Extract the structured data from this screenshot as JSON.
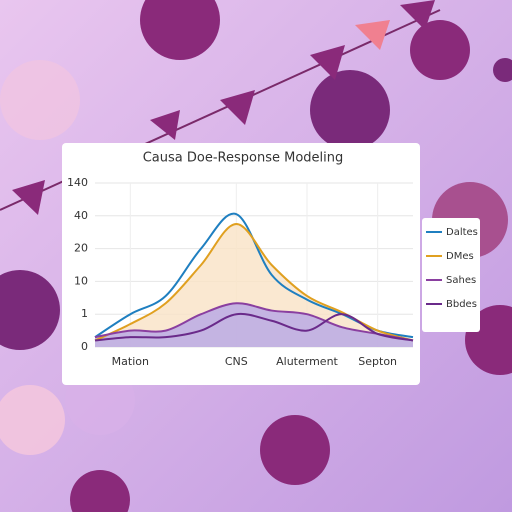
{
  "chart_data": {
    "type": "line",
    "title": "Causa Doe-Response Modeling",
    "categories": [
      null,
      "Mation",
      null,
      null,
      "CNS",
      null,
      "Aluterment",
      null,
      "Septon",
      null
    ],
    "series": [
      {
        "name": "Daltes",
        "color": "#1f7fc0",
        "values": [
          0.3,
          1,
          6,
          20,
          45,
          12,
          5,
          1,
          0.5,
          0.3
        ]
      },
      {
        "name": "DMes",
        "color": "#e0a020",
        "fill": "#f9e2c6",
        "values": [
          0.2,
          0.7,
          4,
          15,
          35,
          15,
          6,
          1.5,
          0.5,
          0.2
        ]
      },
      {
        "name": "Sahes",
        "color": "#8a3fa0",
        "fill": "#b7a6e6",
        "values": [
          0.3,
          0.5,
          0.5,
          1,
          4,
          2,
          1,
          0.6,
          0.4,
          0.2
        ]
      },
      {
        "name": "Bbdes",
        "color": "#6a2a8a",
        "values": [
          0.2,
          0.3,
          0.3,
          0.5,
          1,
          0.8,
          0.5,
          1,
          0.4,
          0.2
        ]
      }
    ],
    "yticks": [
      0,
      1,
      10,
      20,
      40,
      140
    ],
    "ylim": [
      0,
      140
    ],
    "grid": true
  }
}
